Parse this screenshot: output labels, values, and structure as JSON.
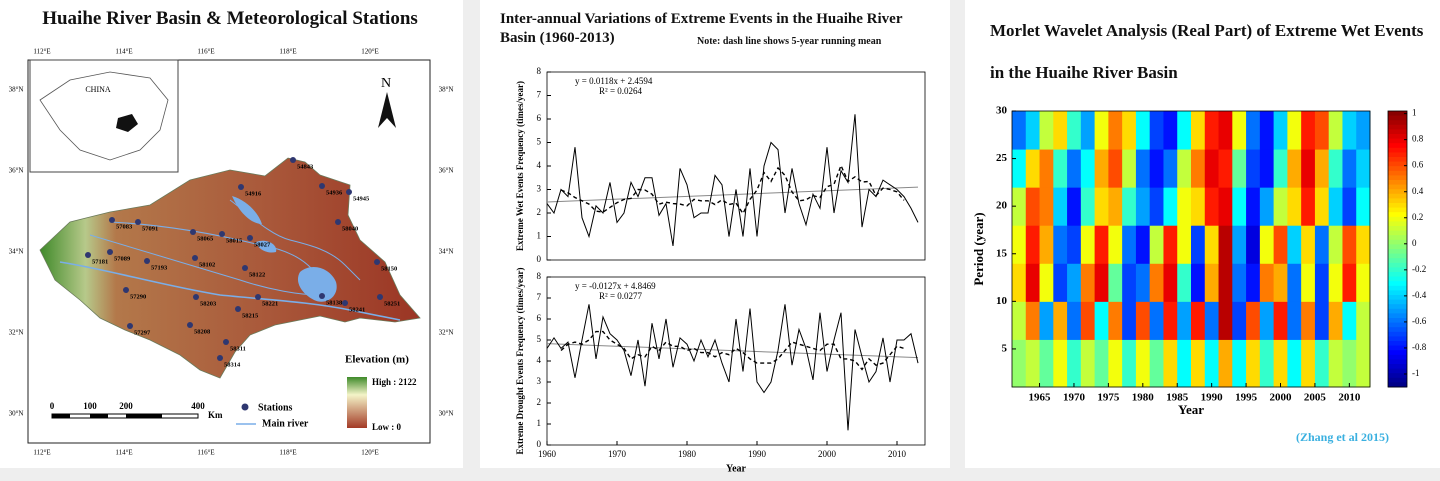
{
  "map": {
    "title": "Huaihe River Basin & Meteorological Stations",
    "lon_labels": [
      "112°E",
      "114°E",
      "116°E",
      "118°E",
      "120°E"
    ],
    "lat_labels": [
      "38°N",
      "36°N",
      "34°N",
      "32°N",
      "30°N"
    ],
    "inset_label": "CHINA",
    "north": "N",
    "stations": [
      "54843",
      "54916",
      "54936",
      "54945",
      "58040",
      "57083",
      "57091",
      "58065",
      "58015",
      "58027",
      "57089",
      "57193",
      "58102",
      "58122",
      "57181",
      "58150",
      "57290",
      "58203",
      "58221",
      "58138",
      "58241",
      "58251",
      "58208",
      "58215",
      "57297",
      "58311",
      "58314"
    ],
    "legend": {
      "elevation_title": "Elevation (m)",
      "high": "High : 2122",
      "low": "Low : 0",
      "stations": "Stations",
      "river": "Main river"
    },
    "scale": {
      "labels": [
        0,
        100,
        200,
        400
      ],
      "unit": "Km"
    }
  },
  "chart_data": [
    {
      "type": "line",
      "title": "Inter-annual Variations of Extreme Events in the Huaihe River Basin (1960-2013)",
      "note": "Note: dash line shows 5-year running mean",
      "ylabel": "Extreme Wet Events Frequency (times/year)",
      "equation": "y = 0.0118x + 2.4594",
      "r2": "R² = 0.0264",
      "x": [
        1960,
        1961,
        1962,
        1963,
        1964,
        1965,
        1966,
        1967,
        1968,
        1969,
        1970,
        1971,
        1972,
        1973,
        1974,
        1975,
        1976,
        1977,
        1978,
        1979,
        1980,
        1981,
        1982,
        1983,
        1984,
        1985,
        1986,
        1987,
        1988,
        1989,
        1990,
        1991,
        1992,
        1993,
        1994,
        1995,
        1996,
        1997,
        1998,
        1999,
        2000,
        2001,
        2002,
        2003,
        2004,
        2005,
        2006,
        2007,
        2008,
        2009,
        2010,
        2011,
        2012,
        2013
      ],
      "series": [
        {
          "color": "#000000",
          "dash": false,
          "values": [
            2.4,
            2.0,
            3.0,
            2.7,
            4.8,
            1.8,
            1.0,
            2.3,
            2.0,
            3.3,
            1.6,
            2.0,
            3.3,
            2.7,
            3.5,
            3.5,
            1.9,
            2.4,
            0.6,
            3.9,
            3.2,
            1.8,
            2.0,
            2.0,
            3.6,
            3.2,
            1.0,
            3.0,
            1.0,
            3.9,
            1.0,
            4.0,
            5.0,
            4.7,
            2.0,
            3.9,
            2.4,
            1.5,
            2.8,
            2.2,
            4.8,
            2.0,
            3.8,
            3.3,
            6.2,
            1.4,
            3.0,
            2.7,
            3.4,
            3.2,
            3.0,
            2.7,
            2.2,
            1.6
          ]
        },
        {
          "color": "#000000",
          "dash": true,
          "values": [
            null,
            null,
            2.98,
            2.86,
            2.66,
            2.52,
            2.38,
            2.08,
            2.04,
            2.24,
            2.44,
            2.58,
            2.62,
            3.0,
            2.98,
            2.8,
            2.38,
            2.46,
            2.4,
            2.38,
            2.3,
            2.58,
            2.52,
            2.52,
            2.36,
            2.56,
            2.36,
            2.42,
            1.98,
            2.58,
            2.98,
            3.72,
            3.34,
            3.92,
            3.6,
            2.9,
            2.52,
            2.56,
            2.74,
            2.66,
            3.12,
            3.22,
            4.02,
            3.34,
            3.54,
            3.32,
            3.34,
            2.74,
            3.06,
            3.0,
            2.9,
            2.54,
            null,
            null
          ]
        }
      ],
      "trend": {
        "color": "#888888",
        "x": [
          1960,
          2013
        ],
        "values": [
          2.47,
          3.1
        ]
      },
      "xlim": [
        1960,
        2014
      ],
      "ylim": [
        0,
        8
      ],
      "yticks": [
        0,
        1,
        2,
        3,
        4,
        5,
        6,
        7,
        8
      ]
    },
    {
      "type": "line",
      "ylabel": "Extreme Drought Events Frequency (times/year)",
      "xlabel": "Year",
      "equation": "y = -0.0127x + 4.8469",
      "r2": "R² = 0.0277",
      "x": [
        1960,
        1961,
        1962,
        1963,
        1964,
        1965,
        1966,
        1967,
        1968,
        1969,
        1970,
        1971,
        1972,
        1973,
        1974,
        1975,
        1976,
        1977,
        1978,
        1979,
        1980,
        1981,
        1982,
        1983,
        1984,
        1985,
        1986,
        1987,
        1988,
        1989,
        1990,
        1991,
        1992,
        1993,
        1994,
        1995,
        1996,
        1997,
        1998,
        1999,
        2000,
        2001,
        2002,
        2003,
        2004,
        2005,
        2006,
        2007,
        2008,
        2009,
        2010,
        2011,
        2012,
        2013
      ],
      "series": [
        {
          "color": "#000000",
          "dash": false,
          "values": [
            4.6,
            5.1,
            4.6,
            4.9,
            3.2,
            5.0,
            6.7,
            4.1,
            6.1,
            5.3,
            5.0,
            4.5,
            3.3,
            5.0,
            2.8,
            5.8,
            4.1,
            6.0,
            3.7,
            5.1,
            4.8,
            4.0,
            5.0,
            4.2,
            5.0,
            3.9,
            3.0,
            6.0,
            3.5,
            6.5,
            3.0,
            2.5,
            3.0,
            4.5,
            6.7,
            3.8,
            5.5,
            4.6,
            3.1,
            6.3,
            3.5,
            5.0,
            6.3,
            0.7,
            5.5,
            4.2,
            3.0,
            3.5,
            5.1,
            3.0,
            5.0,
            5.0,
            5.3,
            3.9
          ]
        },
        {
          "color": "#000000",
          "dash": true,
          "values": [
            null,
            null,
            4.5,
            4.8,
            4.9,
            4.8,
            5.0,
            5.4,
            5.4,
            5.0,
            4.8,
            4.6,
            4.1,
            4.3,
            4.2,
            4.7,
            4.5,
            4.9,
            4.7,
            4.7,
            4.5,
            4.6,
            4.4,
            4.4,
            4.2,
            4.4,
            4.3,
            4.6,
            4.4,
            4.1,
            3.9,
            3.9,
            3.9,
            4.1,
            4.5,
            4.9,
            4.8,
            4.7,
            4.6,
            4.5,
            4.8,
            4.8,
            4.1,
            4.1,
            4.0,
            3.6,
            4.1,
            3.8,
            3.9,
            4.3,
            4.7,
            4.6,
            null,
            null
          ]
        }
      ],
      "trend": {
        "color": "#888888",
        "x": [
          1960,
          2013
        ],
        "values": [
          4.83,
          4.16
        ]
      },
      "xlim": [
        1960,
        2014
      ],
      "ylim": [
        0,
        8
      ],
      "yticks": [
        0,
        1,
        2,
        3,
        4,
        5,
        6,
        7,
        8
      ],
      "xticks": [
        1960,
        1970,
        1980,
        1990,
        2000,
        2010
      ]
    },
    {
      "type": "heatmap",
      "title": "Morlet Wavelet Analysis (Real Part) of Extreme Wet Events in the Huaihe River Basin",
      "xlabel": "Year",
      "ylabel": "Period (year)",
      "x": [
        1962,
        1964,
        1966,
        1968,
        1970,
        1972,
        1974,
        1976,
        1978,
        1980,
        1982,
        1984,
        1986,
        1988,
        1990,
        1992,
        1994,
        1996,
        1998,
        2000,
        2002,
        2004,
        2006,
        2008,
        2010,
        2012
      ],
      "y": [
        4,
        8,
        12,
        16,
        20,
        24,
        28
      ],
      "z": [
        [
          0.0,
          0.1,
          -0.1,
          0.2,
          -0.2,
          0.1,
          -0.1,
          0.2,
          -0.2,
          0.2,
          -0.1,
          0.3,
          -0.3,
          0.3,
          -0.3,
          0.4,
          -0.3,
          0.3,
          -0.2,
          0.3,
          -0.3,
          0.3,
          -0.2,
          0.1,
          0.0,
          0.1
        ],
        [
          0.1,
          0.5,
          -0.5,
          0.4,
          -0.6,
          0.6,
          -0.3,
          0.5,
          -0.7,
          0.6,
          -0.6,
          0.7,
          -0.5,
          0.7,
          -0.6,
          0.9,
          -0.7,
          0.6,
          -0.5,
          0.7,
          -0.6,
          0.5,
          -0.7,
          0.4,
          -0.3,
          0.1
        ],
        [
          0.3,
          0.8,
          0.2,
          -0.7,
          -0.5,
          0.5,
          0.8,
          -0.1,
          -0.7,
          -0.6,
          0.5,
          0.8,
          -0.2,
          -0.8,
          0.4,
          0.9,
          -0.6,
          -0.8,
          0.5,
          0.4,
          -0.6,
          0.2,
          -0.7,
          0.2,
          0.7,
          0.2
        ],
        [
          0.2,
          0.7,
          0.4,
          -0.6,
          -0.7,
          0.2,
          0.7,
          0.2,
          -0.6,
          -0.8,
          0.1,
          0.7,
          0.2,
          -0.7,
          0.3,
          0.9,
          -0.5,
          -0.9,
          0.2,
          0.6,
          -0.4,
          0.3,
          -0.6,
          0.1,
          0.6,
          0.3
        ],
        [
          0.1,
          0.6,
          0.5,
          -0.4,
          -0.8,
          -0.2,
          0.3,
          0.4,
          -0.2,
          -0.5,
          -0.7,
          -0.3,
          0.2,
          0.3,
          0.7,
          0.8,
          -0.3,
          -0.8,
          -0.5,
          0.1,
          0.3,
          0.7,
          0.3,
          -0.4,
          -0.7,
          -0.3
        ],
        [
          -0.3,
          0.3,
          0.5,
          -0.2,
          -0.6,
          -0.3,
          0.4,
          0.6,
          0.1,
          -0.6,
          -0.8,
          -0.6,
          0.1,
          0.5,
          0.8,
          0.7,
          -0.1,
          -0.7,
          -0.8,
          -0.2,
          0.4,
          0.8,
          0.4,
          -0.2,
          -0.6,
          -0.4
        ],
        [
          -0.6,
          -0.4,
          0.1,
          0.3,
          -0.2,
          -0.5,
          0.2,
          0.5,
          0.3,
          -0.3,
          -0.7,
          -0.8,
          -0.3,
          0.3,
          0.7,
          0.8,
          0.2,
          -0.6,
          -0.8,
          -0.4,
          0.2,
          0.7,
          0.6,
          0.1,
          -0.4,
          -0.5
        ]
      ],
      "xlim": [
        1961,
        2013
      ],
      "ylim": [
        1,
        30
      ],
      "xticks": [
        1965,
        1970,
        1975,
        1980,
        1985,
        1990,
        1995,
        2000,
        2005,
        2010
      ],
      "yticks": [
        5,
        10,
        15,
        20,
        25,
        30
      ],
      "clim": [
        -1.1,
        1.02
      ],
      "cticks": [
        1,
        0.8,
        0.6,
        0.4,
        0.2,
        0,
        -0.2,
        -0.4,
        -0.6,
        -0.8,
        -1
      ],
      "colormap": "jet"
    }
  ],
  "citation": "(Zhang et al 2015)"
}
